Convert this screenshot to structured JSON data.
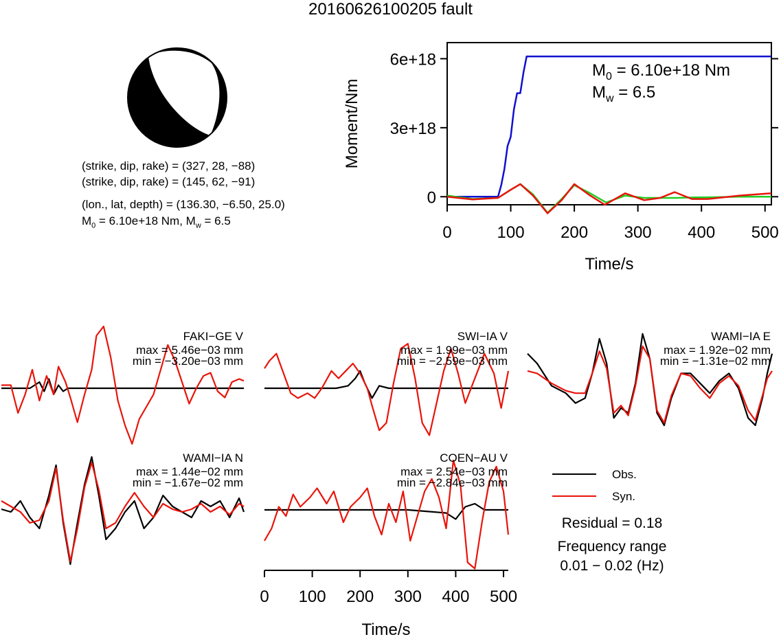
{
  "title": "20160626100205 fault",
  "mechanism": {
    "plane1": "(strike, dip, rake) = (327, 28, −88)",
    "plane2": "(strike, dip, rake) = (145, 62, −91)",
    "location": "(lon., lat, depth) = (136.30, −6.50, 25.0)",
    "moment_prefix": "M",
    "moment_sub": "0",
    "moment_value": " = 6.10e+18 Nm, M",
    "mw_sub": "w",
    "mw_value": " = 6.5"
  },
  "moment_panel": {
    "ylabel": "Moment/Nm",
    "xlabel": "Time/s",
    "m0_prefix": "M",
    "m0_sub": "0",
    "m0_value": " = 6.10e+18 Nm",
    "mw_prefix": "M",
    "mw_sub": "w",
    "mw_value": " = 6.5",
    "yticks": [
      "0",
      "3e+18",
      "6e+18"
    ],
    "xticks": [
      "0",
      "100",
      "200",
      "300",
      "400",
      "500"
    ]
  },
  "stations": [
    {
      "name": "FAKI−GE V",
      "max": "max = 5.46e−03 mm",
      "min": "min = −3.20e−03 mm"
    },
    {
      "name": "SWI−IA V",
      "max": "max = 1.99e−03 mm",
      "min": "min = −2.59e−03 mm"
    },
    {
      "name": "WAMI−IA E",
      "max": "max = 1.92e−02 mm",
      "min": "min = −1.31e−02 mm"
    },
    {
      "name": "WAMI−IA N",
      "max": "max = 1.44e−02 mm",
      "min": "min = −1.67e−02 mm"
    },
    {
      "name": "COEN−AU V",
      "max": "max = 2.54e−03 mm",
      "min": "min = −2.84e−03 mm"
    }
  ],
  "waveform_axis": {
    "xlabel": "Time/s",
    "xticks": [
      "0",
      "100",
      "200",
      "300",
      "400",
      "500"
    ]
  },
  "legend": {
    "obs": "Obs.",
    "syn": "Syn."
  },
  "residual": "Residual = 0.18",
  "freq_label": "Frequency range",
  "freq_value": "0.01 − 0.02 (Hz)",
  "colors": {
    "obs": "#000000",
    "syn": "#e8140a",
    "moment": "#1010d0",
    "green": "#22cc22"
  },
  "chart_data": [
    {
      "type": "line",
      "xlabel": "Time/s",
      "ylabel": "Moment/Nm",
      "xlim": [
        0,
        510
      ],
      "ylim": [
        -3.5e+17,
        6.7e+18
      ],
      "series": [
        {
          "key": "cumulative_moment",
          "x": [
            0,
            80,
            85,
            90,
            95,
            100,
            105,
            110,
            115,
            120,
            125,
            130,
            200,
            300,
            400,
            510
          ],
          "y": [
            0,
            0,
            5e+17,
            1.2e+18,
            2.2e+18,
            2.6e+18,
            3.8e+18,
            4.5e+18,
            4.5e+18,
            5.4e+18,
            6.1e+18,
            6.1e+18,
            6.1e+18,
            6.1e+18,
            6.1e+18,
            6.1e+18
          ]
        },
        {
          "key": "moment_rate_a",
          "x": [
            0,
            40,
            80,
            100,
            115,
            135,
            158,
            180,
            200,
            225,
            250,
            280,
            310,
            340,
            360,
            390,
            420,
            460,
            510
          ],
          "y": [
            5e+16,
            -1e+17,
            -5e+16,
            3e+17,
            5.5e+17,
            1e+17,
            -7e+17,
            -1e+17,
            5e+17,
            1.5e+17,
            -2.5e+17,
            5e+16,
            -5e+16,
            -5e+16,
            -5e+16,
            -3e+16,
            -2e+16,
            0.0,
            0.0
          ]
        },
        {
          "key": "moment_rate_b",
          "x": [
            0,
            40,
            80,
            100,
            115,
            135,
            158,
            180,
            200,
            225,
            248,
            280,
            310,
            335,
            358,
            385,
            410,
            460,
            510
          ],
          "y": [
            0.0,
            -1.2e+17,
            -5e+16,
            3e+17,
            5.5e+17,
            5e+16,
            -7.2e+17,
            -1.5e+17,
            5.5e+17,
            5e+16,
            -3.5e+17,
            1.5e+17,
            -1.5e+17,
            -5e+16,
            2e+17,
            -1e+17,
            -1e+17,
            5e+16,
            1.5e+17
          ]
        }
      ]
    },
    {
      "type": "line",
      "station": "FAKI−GE V",
      "series": [
        {
          "name": "Obs.",
          "x": [
            0,
            60,
            80,
            90,
            100,
            110,
            120,
            130,
            140,
            200,
            300,
            400,
            510
          ],
          "y": [
            0,
            0,
            0.1,
            -0.05,
            0.15,
            -0.1,
            0.05,
            -0.05,
            0,
            0,
            0,
            0,
            0
          ]
        },
        {
          "name": "Syn.",
          "x": [
            0,
            20,
            35,
            50,
            65,
            80,
            95,
            110,
            120,
            135,
            145,
            160,
            175,
            190,
            200,
            215,
            230,
            245,
            260,
            275,
            290,
            305,
            320,
            335,
            350,
            365,
            380,
            395,
            410,
            425,
            440,
            455,
            470,
            485,
            500,
            510
          ],
          "y": [
            0.05,
            0.05,
            -0.4,
            -0.1,
            0.3,
            -0.2,
            0.2,
            -0.1,
            0.35,
            0.1,
            -0.15,
            -0.55,
            -0.1,
            0.3,
            0.85,
            1.0,
            0.5,
            -0.2,
            -0.6,
            -0.9,
            -0.5,
            -0.3,
            -0.1,
            0.3,
            0.7,
            0.45,
            0.1,
            -0.25,
            0.0,
            0.2,
            0.25,
            -0.05,
            -0.15,
            0.1,
            0.15,
            0.12
          ]
        }
      ]
    },
    {
      "type": "line",
      "station": "SWI−IA V",
      "series": [
        {
          "name": "Obs.",
          "x": [
            0,
            150,
            175,
            190,
            200,
            210,
            225,
            240,
            260,
            300,
            400,
            510
          ],
          "y": [
            0,
            0,
            0.05,
            0.2,
            0.35,
            0.1,
            -0.2,
            0.05,
            0,
            0,
            0,
            0
          ]
        },
        {
          "name": "Syn.",
          "x": [
            0,
            10,
            25,
            40,
            55,
            70,
            90,
            105,
            120,
            140,
            155,
            170,
            185,
            200,
            215,
            225,
            240,
            255,
            270,
            285,
            300,
            315,
            330,
            345,
            360,
            375,
            390,
            405,
            420,
            440,
            460,
            480,
            495,
            510
          ],
          "y": [
            0.4,
            0.55,
            0.7,
            0.3,
            -0.1,
            -0.2,
            -0.1,
            -0.2,
            0.0,
            0.35,
            0.2,
            0.35,
            0.5,
            0.3,
            0.0,
            -0.35,
            -0.85,
            -0.7,
            0.1,
            0.8,
            0.9,
            0.2,
            -0.7,
            -0.95,
            -0.3,
            0.35,
            0.8,
            0.3,
            -0.3,
            0.2,
            0.7,
            0.3,
            -0.4,
            0.35
          ]
        }
      ]
    },
    {
      "type": "line",
      "station": "WAMI−IA E",
      "series": [
        {
          "name": "Obs.",
          "x": [
            0,
            20,
            50,
            80,
            100,
            120,
            135,
            150,
            165,
            180,
            195,
            210,
            225,
            240,
            255,
            270,
            285,
            300,
            320,
            340,
            360,
            380,
            400,
            420,
            440,
            460,
            475,
            490,
            500,
            510
          ],
          "y": [
            0.7,
            0.5,
            0.05,
            -0.1,
            -0.3,
            -0.2,
            0.3,
            1.0,
            0.5,
            -0.6,
            -0.4,
            -0.5,
            0.1,
            1.1,
            0.6,
            -0.5,
            -0.75,
            -0.2,
            0.3,
            0.3,
            0.1,
            -0.1,
            0.15,
            0.3,
            0.0,
            -0.6,
            -0.75,
            -0.2,
            0.3,
            0.7
          ]
        },
        {
          "name": "Syn.",
          "x": [
            0,
            20,
            50,
            80,
            100,
            120,
            135,
            150,
            165,
            180,
            195,
            210,
            225,
            240,
            255,
            270,
            285,
            300,
            320,
            340,
            360,
            380,
            400,
            420,
            440,
            460,
            475,
            490,
            500,
            510
          ],
          "y": [
            0.35,
            0.3,
            0.1,
            -0.05,
            -0.1,
            -0.1,
            0.3,
            0.75,
            0.4,
            -0.5,
            -0.35,
            -0.55,
            0.05,
            0.85,
            0.6,
            -0.45,
            -0.7,
            -0.15,
            0.3,
            0.25,
            0.0,
            -0.2,
            0.1,
            0.25,
            0.05,
            -0.45,
            -0.65,
            -0.15,
            0.2,
            0.35
          ]
        }
      ]
    },
    {
      "type": "line",
      "station": "WAMI−IA N",
      "series": [
        {
          "name": "Obs.",
          "x": [
            0,
            20,
            40,
            60,
            80,
            100,
            115,
            130,
            145,
            160,
            175,
            190,
            205,
            220,
            240,
            260,
            280,
            300,
            320,
            340,
            360,
            380,
            400,
            420,
            440,
            460,
            480,
            500,
            510
          ],
          "y": [
            0.05,
            0.0,
            0.2,
            -0.1,
            -0.3,
            0.3,
            0.85,
            -0.2,
            -0.95,
            -0.2,
            0.5,
            1.0,
            0.3,
            -0.5,
            -0.3,
            0.0,
            0.2,
            -0.3,
            -0.1,
            0.3,
            0.1,
            0.0,
            -0.1,
            0.2,
            0.1,
            0.2,
            -0.1,
            0.25,
            0.0
          ]
        },
        {
          "name": "Syn.",
          "x": [
            0,
            20,
            40,
            60,
            80,
            100,
            115,
            130,
            145,
            160,
            175,
            190,
            205,
            220,
            240,
            260,
            280,
            300,
            320,
            340,
            360,
            380,
            400,
            420,
            440,
            460,
            480,
            500,
            510
          ],
          "y": [
            0.2,
            0.1,
            0.0,
            -0.2,
            -0.15,
            0.2,
            0.8,
            -0.15,
            -0.9,
            -0.3,
            0.45,
            0.9,
            0.4,
            -0.3,
            -0.2,
            0.1,
            0.35,
            0.1,
            -0.1,
            0.15,
            0.05,
            0.0,
            0.05,
            0.15,
            0.0,
            0.1,
            -0.05,
            0.15,
            0.1
          ]
        }
      ]
    },
    {
      "type": "line",
      "station": "COEN−AU V",
      "series": [
        {
          "name": "Obs.",
          "x": [
            0,
            100,
            200,
            300,
            380,
            400,
            420,
            440,
            460,
            480,
            510
          ],
          "y": [
            0,
            0,
            0,
            0,
            -0.05,
            -0.15,
            0.05,
            0.1,
            0.0,
            0.0,
            0
          ]
        },
        {
          "name": "Syn.",
          "x": [
            0,
            15,
            30,
            45,
            60,
            75,
            95,
            110,
            130,
            145,
            165,
            180,
            200,
            215,
            230,
            245,
            260,
            275,
            290,
            305,
            320,
            335,
            350,
            365,
            380,
            395,
            410,
            425,
            440,
            455,
            470,
            485,
            500,
            510
          ],
          "y": [
            -0.5,
            -0.3,
            0.05,
            -0.1,
            0.25,
            0.05,
            0.2,
            0.35,
            0.1,
            0.3,
            -0.2,
            0.05,
            0.2,
            0.35,
            -0.1,
            -0.4,
            0.1,
            -0.2,
            0.3,
            -0.5,
            -0.1,
            0.3,
            0.5,
            0.2,
            -0.3,
            0.8,
            0.4,
            -0.85,
            -0.95,
            -0.2,
            0.45,
            0.7,
            0.3,
            -0.4
          ]
        }
      ]
    }
  ]
}
